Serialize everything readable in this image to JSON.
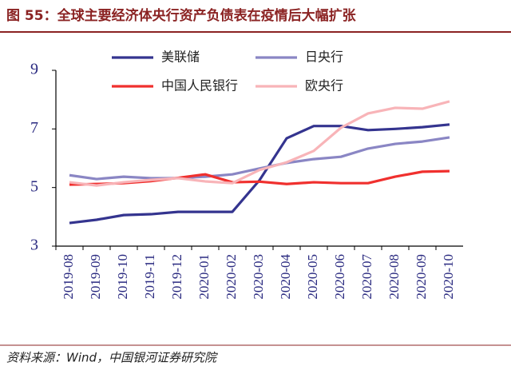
{
  "title": "图 55：全球主要经济体央行资产负债表在疫情后大幅扩张",
  "source": "资料来源：Wind，中国银河证券研究院",
  "chart_data": {
    "type": "line",
    "categories": [
      "2019-08",
      "2019-09",
      "2019-10",
      "2019-11",
      "2019-12",
      "2020-01",
      "2020-02",
      "2020-03",
      "2020-04",
      "2020-05",
      "2020-06",
      "2020-07",
      "2020-08",
      "2020-09",
      "2020-10"
    ],
    "series": [
      {
        "name": "美联储",
        "color": "#34348f",
        "values": [
          3.79,
          3.9,
          4.06,
          4.09,
          4.17,
          4.17,
          4.17,
          5.25,
          6.68,
          7.1,
          7.1,
          6.96,
          7.0,
          7.06,
          7.15
        ]
      },
      {
        "name": "日央行",
        "color": "#8a86c4",
        "values": [
          5.42,
          5.29,
          5.37,
          5.32,
          5.32,
          5.37,
          5.45,
          5.65,
          5.84,
          5.97,
          6.05,
          6.33,
          6.49,
          6.57,
          6.71
        ]
      },
      {
        "name": "中国人民银行",
        "color": "#f0302e",
        "values": [
          5.1,
          5.12,
          5.15,
          5.22,
          5.33,
          5.45,
          5.18,
          5.2,
          5.12,
          5.18,
          5.15,
          5.15,
          5.37,
          5.54,
          5.56
        ]
      },
      {
        "name": "欧央行",
        "color": "#f8b4b8",
        "values": [
          5.18,
          5.07,
          5.18,
          5.26,
          5.32,
          5.21,
          5.15,
          5.6,
          5.86,
          6.25,
          7.04,
          7.53,
          7.72,
          7.69,
          7.94
        ]
      }
    ],
    "ylim": [
      3,
      9
    ],
    "yticks": [
      3,
      5,
      7,
      9
    ],
    "grid": false
  }
}
